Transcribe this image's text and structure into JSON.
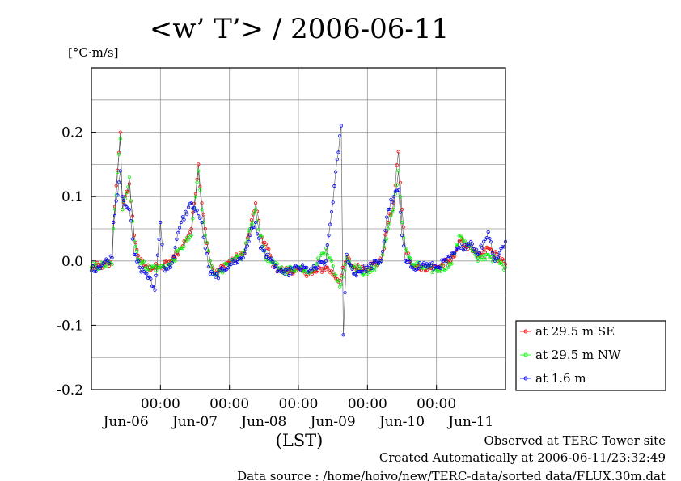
{
  "chart_data": {
    "type": "line",
    "title": "<w’ T’> / 2006-06-11",
    "ylabel": "[°C·m/s]",
    "xlabel": "(LST)",
    "ylim": [
      -0.2,
      0.3
    ],
    "xlim": [
      0,
      6
    ],
    "y_ticks": [
      0.2,
      0.1,
      0.0,
      -0.1,
      -0.2
    ],
    "y_tick_labels": [
      "0.2",
      "0.1",
      "0.0",
      "-0.1",
      "-0.2"
    ],
    "x_time_ticks": [
      1,
      2,
      3,
      4,
      5
    ],
    "x_time_labels": [
      "00:00",
      "00:00",
      "00:00",
      "00:00",
      "00:00"
    ],
    "x_date_positions": [
      0.5,
      1.5,
      2.5,
      3.5,
      4.5,
      5.5
    ],
    "x_date_labels": [
      "Jun-06",
      "Jun-07",
      "Jun-08",
      "Jun-09",
      "Jun-10",
      "Jun-11"
    ],
    "grid": true,
    "legend_position": "bottom-right outside",
    "series": [
      {
        "name": "at 29.5 m SE",
        "color": "#ff0000",
        "keypoints": [
          [
            0.0,
            -0.01
          ],
          [
            0.3,
            -0.005
          ],
          [
            0.32,
            0.06
          ],
          [
            0.42,
            0.2
          ],
          [
            0.45,
            0.08
          ],
          [
            0.55,
            0.12
          ],
          [
            0.62,
            0.04
          ],
          [
            0.7,
            0.0
          ],
          [
            0.8,
            -0.01
          ],
          [
            1.0,
            -0.01
          ],
          [
            1.15,
            0.0
          ],
          [
            1.3,
            0.02
          ],
          [
            1.45,
            0.05
          ],
          [
            1.55,
            0.15
          ],
          [
            1.6,
            0.09
          ],
          [
            1.65,
            0.05
          ],
          [
            1.72,
            0.0
          ],
          [
            1.8,
            -0.02
          ],
          [
            2.0,
            0.0
          ],
          [
            2.2,
            0.01
          ],
          [
            2.3,
            0.05
          ],
          [
            2.38,
            0.09
          ],
          [
            2.45,
            0.04
          ],
          [
            2.55,
            0.02
          ],
          [
            2.65,
            -0.01
          ],
          [
            2.8,
            -0.015
          ],
          [
            3.0,
            -0.015
          ],
          [
            3.2,
            -0.02
          ],
          [
            3.4,
            -0.01
          ],
          [
            3.6,
            -0.03
          ],
          [
            3.7,
            0.005
          ],
          [
            3.8,
            -0.01
          ],
          [
            4.0,
            -0.01
          ],
          [
            4.2,
            0.0
          ],
          [
            4.3,
            0.06
          ],
          [
            4.38,
            0.09
          ],
          [
            4.45,
            0.17
          ],
          [
            4.5,
            0.08
          ],
          [
            4.55,
            0.02
          ],
          [
            4.65,
            -0.01
          ],
          [
            4.8,
            -0.01
          ],
          [
            5.0,
            -0.01
          ],
          [
            5.2,
            0.0
          ],
          [
            5.35,
            0.03
          ],
          [
            5.5,
            0.02
          ],
          [
            5.6,
            0.005
          ],
          [
            5.75,
            0.02
          ],
          [
            6.0,
            -0.005
          ]
        ]
      },
      {
        "name": "at 29.5 m NW",
        "color": "#00ff00",
        "keypoints": [
          [
            0.0,
            -0.01
          ],
          [
            0.3,
            -0.005
          ],
          [
            0.32,
            0.05
          ],
          [
            0.42,
            0.19
          ],
          [
            0.45,
            0.08
          ],
          [
            0.55,
            0.13
          ],
          [
            0.62,
            0.03
          ],
          [
            0.7,
            0.0
          ],
          [
            0.8,
            -0.01
          ],
          [
            1.0,
            -0.01
          ],
          [
            1.15,
            -0.005
          ],
          [
            1.3,
            0.02
          ],
          [
            1.45,
            0.04
          ],
          [
            1.55,
            0.14
          ],
          [
            1.6,
            0.08
          ],
          [
            1.65,
            0.04
          ],
          [
            1.72,
            0.0
          ],
          [
            1.8,
            -0.02
          ],
          [
            2.0,
            -0.005
          ],
          [
            2.2,
            0.01
          ],
          [
            2.3,
            0.05
          ],
          [
            2.38,
            0.08
          ],
          [
            2.45,
            0.04
          ],
          [
            2.55,
            0.0
          ],
          [
            2.65,
            -0.005
          ],
          [
            2.8,
            -0.015
          ],
          [
            3.0,
            -0.01
          ],
          [
            3.2,
            -0.015
          ],
          [
            3.4,
            0.02
          ],
          [
            3.6,
            -0.04
          ],
          [
            3.7,
            0.005
          ],
          [
            3.8,
            -0.01
          ],
          [
            4.0,
            -0.02
          ],
          [
            4.2,
            0.0
          ],
          [
            4.3,
            0.05
          ],
          [
            4.38,
            0.08
          ],
          [
            4.45,
            0.14
          ],
          [
            4.5,
            0.06
          ],
          [
            4.55,
            0.02
          ],
          [
            4.65,
            -0.005
          ],
          [
            4.8,
            -0.01
          ],
          [
            5.0,
            -0.015
          ],
          [
            5.2,
            -0.005
          ],
          [
            5.35,
            0.04
          ],
          [
            5.5,
            0.02
          ],
          [
            5.6,
            0.0
          ],
          [
            5.75,
            0.01
          ],
          [
            6.0,
            -0.01
          ]
        ]
      },
      {
        "name": "at 1.6 m",
        "color": "#0000ff",
        "keypoints": [
          [
            0.0,
            -0.015
          ],
          [
            0.3,
            0.005
          ],
          [
            0.32,
            0.06
          ],
          [
            0.42,
            0.14
          ],
          [
            0.45,
            0.1
          ],
          [
            0.55,
            0.08
          ],
          [
            0.62,
            0.01
          ],
          [
            0.7,
            -0.01
          ],
          [
            0.8,
            -0.02
          ],
          [
            0.92,
            -0.045
          ],
          [
            1.0,
            0.06
          ],
          [
            1.05,
            -0.01
          ],
          [
            1.15,
            -0.01
          ],
          [
            1.3,
            0.06
          ],
          [
            1.45,
            0.09
          ],
          [
            1.55,
            0.07
          ],
          [
            1.6,
            0.06
          ],
          [
            1.65,
            0.02
          ],
          [
            1.72,
            -0.02
          ],
          [
            1.8,
            -0.025
          ],
          [
            2.0,
            -0.005
          ],
          [
            2.2,
            0.005
          ],
          [
            2.3,
            0.04
          ],
          [
            2.38,
            0.06
          ],
          [
            2.45,
            0.02
          ],
          [
            2.55,
            0.01
          ],
          [
            2.65,
            -0.01
          ],
          [
            2.8,
            -0.02
          ],
          [
            3.0,
            -0.01
          ],
          [
            3.2,
            -0.015
          ],
          [
            3.4,
            0.0
          ],
          [
            3.62,
            0.21
          ],
          [
            3.65,
            -0.115
          ],
          [
            3.7,
            0.01
          ],
          [
            3.8,
            -0.02
          ],
          [
            4.0,
            -0.01
          ],
          [
            4.2,
            0.0
          ],
          [
            4.3,
            0.08
          ],
          [
            4.38,
            0.1
          ],
          [
            4.45,
            0.11
          ],
          [
            4.5,
            0.04
          ],
          [
            4.55,
            0.0
          ],
          [
            4.65,
            -0.01
          ],
          [
            4.8,
            -0.005
          ],
          [
            5.0,
            -0.01
          ],
          [
            5.2,
            0.005
          ],
          [
            5.35,
            0.02
          ],
          [
            5.5,
            0.03
          ],
          [
            5.6,
            0.01
          ],
          [
            5.75,
            0.045
          ],
          [
            5.85,
            0.0
          ],
          [
            6.0,
            0.03
          ]
        ]
      }
    ]
  },
  "footer": {
    "observed": "Observed at TERC Tower site",
    "created": "Created Automatically at 2006-06-11/23:32:49",
    "source": "Data source : /home/hoivo/new/TERC-data/sorted data/FLUX.30m.dat"
  }
}
